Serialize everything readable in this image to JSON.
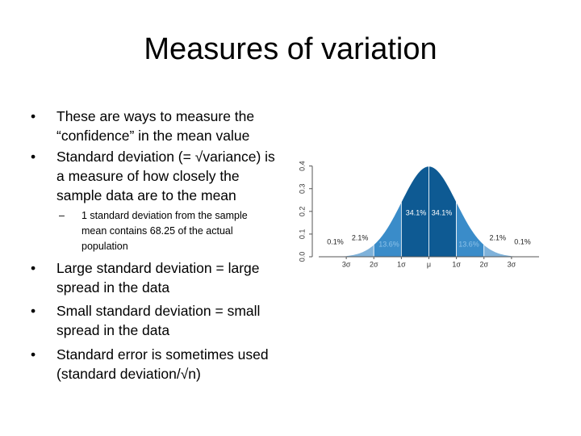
{
  "slide": {
    "title": "Measures of variation",
    "bullets": [
      {
        "level": 1,
        "text": "These are ways to measure the “confidence” in the mean value"
      },
      {
        "level": 1,
        "text": "Standard deviation (= √variance) is a measure of how closely the sample data are to the mean"
      },
      {
        "level": 2,
        "text": "1 standard deviation from the sample mean contains 68.25 of the actual population"
      },
      {
        "level": 1,
        "text": "Large standard deviation = large spread in the data"
      },
      {
        "level": 1,
        "text": "Small standard deviation = small spread in the data"
      },
      {
        "level": 1,
        "text": "Standard error is sometimes used (standard deviation/√n)"
      }
    ]
  },
  "chart_data": {
    "type": "normal",
    "values": [
      0.1,
      2.1,
      13.6,
      34.1,
      34.1,
      13.6,
      2.1,
      0.1
    ],
    "value_labels": [
      "0.1%",
      "2.1%",
      "13.6%",
      "34.1%",
      "34.1%",
      "13.6%",
      "2.1%",
      "0.1%"
    ],
    "colors": [
      "#c5dcee",
      "#7fb2da",
      "#3a8cc9",
      "#0e5a93",
      "#0e5a93",
      "#3a8cc9",
      "#7fb2da",
      "#c5dcee"
    ],
    "xlim": [
      -4,
      4
    ],
    "xticks": [
      {
        "value": -3,
        "label": "3σ"
      },
      {
        "value": -2,
        "label": "2σ"
      },
      {
        "value": -1,
        "label": "1σ"
      },
      {
        "value": 0,
        "label": "μ"
      },
      {
        "value": 1,
        "label": "1σ"
      },
      {
        "value": 2,
        "label": "2σ"
      },
      {
        "value": 3,
        "label": "3σ"
      }
    ],
    "ylim": [
      0,
      0.42
    ],
    "yticks": [
      {
        "value": 0,
        "label": "0.0"
      },
      0.1,
      0.2,
      0.3,
      0.4
    ]
  }
}
